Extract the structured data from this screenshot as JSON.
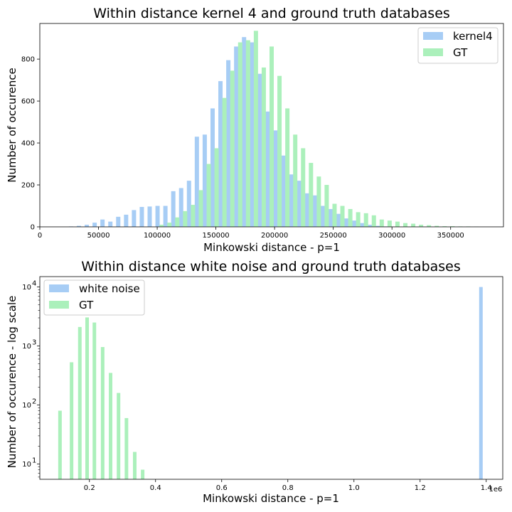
{
  "chart_data": [
    {
      "type": "bar",
      "title": "Within distance kernel 4 and ground truth databases",
      "xlabel": "Minkowski distance - p=1",
      "ylabel": "Number of occurence",
      "xlim": [
        0,
        395000
      ],
      "ylim": [
        0,
        970
      ],
      "x_ticks": [
        0,
        50000,
        100000,
        150000,
        200000,
        250000,
        300000,
        350000
      ],
      "x_tick_labels": [
        "0",
        "50000",
        "100000",
        "150000",
        "200000",
        "250000",
        "300000",
        "350000"
      ],
      "y_ticks": [
        0,
        200,
        400,
        600,
        800
      ],
      "y_tick_labels": [
        "0",
        "200",
        "400",
        "600",
        "800"
      ],
      "legend": "top-right",
      "grid": false,
      "series": [
        {
          "name": "kernel4",
          "color": "#a7cdf5",
          "x": [
            19900,
            26600,
            33300,
            40000,
            46700,
            53400,
            60100,
            66800,
            73500,
            80200,
            86900,
            93600,
            100300,
            107000,
            113700,
            120400,
            127100,
            133800,
            140500,
            147200,
            153900,
            160600,
            167300,
            174000,
            180700,
            187400,
            194100,
            200800,
            207500,
            214200,
            220900,
            227600,
            234300,
            241000,
            247700,
            254400,
            261100,
            267800,
            274500,
            281200,
            287900,
            294600
          ],
          "values": [
            0,
            2,
            5,
            10,
            20,
            35,
            25,
            48,
            58,
            80,
            95,
            97,
            100,
            100,
            170,
            185,
            220,
            430,
            440,
            565,
            695,
            795,
            860,
            905,
            880,
            730,
            550,
            460,
            340,
            250,
            220,
            160,
            150,
            100,
            85,
            62,
            40,
            30,
            18,
            10,
            5,
            2
          ]
        },
        {
          "name": "GT",
          "color": "#abf0bb",
          "x": [
            23300,
            30000,
            36700,
            43400,
            50100,
            56800,
            63500,
            70200,
            76900,
            83600,
            90300,
            97000,
            103700,
            110400,
            117100,
            123800,
            130500,
            137200,
            143900,
            150600,
            157300,
            164000,
            170700,
            177400,
            184100,
            190800,
            197500,
            204200,
            210900,
            217600,
            224300,
            231000,
            237700,
            244400,
            251100,
            257800,
            264500,
            271200,
            277900,
            284600,
            291300,
            298000,
            304700,
            311400,
            318100,
            324800,
            331500,
            338200,
            344900,
            351600,
            358300,
            365000,
            371700
          ],
          "values": [
            0,
            0,
            0,
            0,
            0,
            0,
            0,
            0,
            0,
            0,
            0,
            0,
            10,
            20,
            45,
            75,
            105,
            175,
            300,
            375,
            615,
            745,
            880,
            890,
            935,
            760,
            860,
            720,
            565,
            440,
            375,
            305,
            240,
            200,
            110,
            100,
            85,
            70,
            65,
            55,
            35,
            30,
            25,
            18,
            15,
            10,
            8,
            5,
            3,
            3,
            2,
            2,
            1
          ]
        }
      ]
    },
    {
      "type": "bar",
      "title": "Within distance white noise and ground truth databases",
      "xlabel": "Minkowski distance - p=1",
      "ylabel": "Number of occurence - log scale",
      "x_scale_note": "1e6",
      "y_scale": "log",
      "xlim": [
        0.05,
        1.45
      ],
      "ylim": [
        5.5,
        15000
      ],
      "x_ticks": [
        0.2,
        0.4,
        0.6,
        0.8,
        1.0,
        1.2,
        1.4
      ],
      "x_tick_labels": [
        "0.2",
        "0.4",
        "0.6",
        "0.8",
        "1.0",
        "1.2",
        "1.4"
      ],
      "y_ticks": [
        10,
        100,
        1000,
        10000
      ],
      "y_tick_base": "10",
      "y_tick_exponents": [
        "1",
        "2",
        "3",
        "4"
      ],
      "legend": "top-left",
      "grid": false,
      "series": [
        {
          "name": "white noise",
          "color": "#a7cdf5",
          "x": [
            1.384
          ],
          "values": [
            10000
          ]
        },
        {
          "name": "GT",
          "color": "#abf0bb",
          "x": [
            0.111,
            0.146,
            0.171,
            0.193,
            0.215,
            0.24,
            0.264,
            0.288,
            0.312,
            0.337,
            0.361
          ],
          "values": [
            80,
            530,
            2100,
            3050,
            2500,
            960,
            350,
            160,
            60,
            16,
            8
          ]
        }
      ]
    }
  ]
}
